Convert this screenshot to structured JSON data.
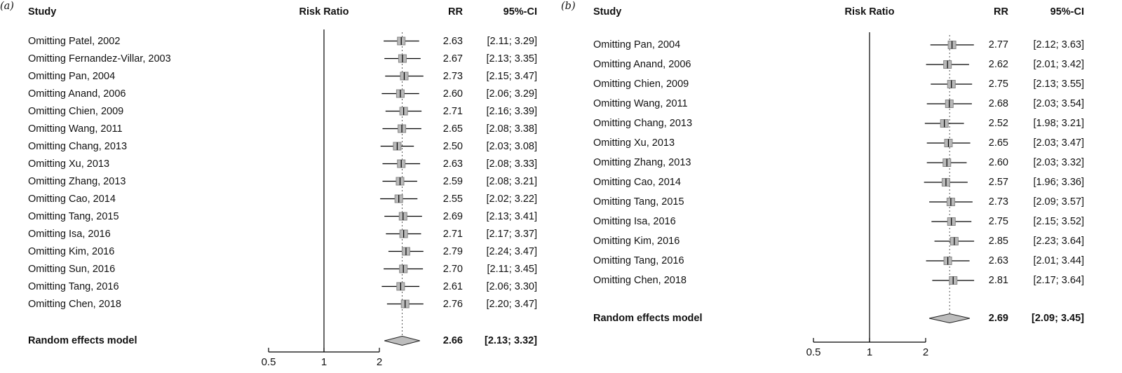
{
  "figure": {
    "background": "#ffffff"
  },
  "colors": {
    "text": "#111111",
    "line": "#000000",
    "square_fill": "#b9b9b9",
    "square_border": "#878787",
    "diamond_fill": "#bdbdbd",
    "diamond_border": "#222222",
    "pooled_line": "#555555"
  },
  "chart_data": [
    {
      "type": "forest",
      "panel_label": "(a)",
      "columns": {
        "study": "Study",
        "plot": "Risk Ratio",
        "rr": "RR",
        "ci": "95%-CI"
      },
      "studies": [
        {
          "label": "Omitting Patel, 2002",
          "rr": "2.63",
          "ci": "[2.11; 3.29]",
          "mean": 2.63,
          "lower": 2.11,
          "upper": 3.29
        },
        {
          "label": "Omitting Fernandez-Villar, 2003",
          "rr": "2.67",
          "ci": "[2.13; 3.35]",
          "mean": 2.67,
          "lower": 2.13,
          "upper": 3.35
        },
        {
          "label": "Omitting Pan, 2004",
          "rr": "2.73",
          "ci": "[2.15; 3.47]",
          "mean": 2.73,
          "lower": 2.15,
          "upper": 3.47
        },
        {
          "label": "Omitting Anand, 2006",
          "rr": "2.60",
          "ci": "[2.06; 3.29]",
          "mean": 2.6,
          "lower": 2.06,
          "upper": 3.29
        },
        {
          "label": "Omitting Chien, 2009",
          "rr": "2.71",
          "ci": "[2.16; 3.39]",
          "mean": 2.71,
          "lower": 2.16,
          "upper": 3.39
        },
        {
          "label": "Omitting Wang, 2011",
          "rr": "2.65",
          "ci": "[2.08; 3.38]",
          "mean": 2.65,
          "lower": 2.08,
          "upper": 3.38
        },
        {
          "label": "Omitting Chang, 2013",
          "rr": "2.50",
          "ci": "[2.03; 3.08]",
          "mean": 2.5,
          "lower": 2.03,
          "upper": 3.08
        },
        {
          "label": "Omitting Xu, 2013",
          "rr": "2.63",
          "ci": "[2.08; 3.33]",
          "mean": 2.63,
          "lower": 2.08,
          "upper": 3.33
        },
        {
          "label": "Omitting Zhang, 2013",
          "rr": "2.59",
          "ci": "[2.08; 3.21]",
          "mean": 2.59,
          "lower": 2.08,
          "upper": 3.21
        },
        {
          "label": "Omitting Cao, 2014",
          "rr": "2.55",
          "ci": "[2.02; 3.22]",
          "mean": 2.55,
          "lower": 2.02,
          "upper": 3.22
        },
        {
          "label": "Omitting Tang, 2015",
          "rr": "2.69",
          "ci": "[2.13; 3.41]",
          "mean": 2.69,
          "lower": 2.13,
          "upper": 3.41
        },
        {
          "label": "Omitting Isa, 2016",
          "rr": "2.71",
          "ci": "[2.17; 3.37]",
          "mean": 2.71,
          "lower": 2.17,
          "upper": 3.37
        },
        {
          "label": "Omitting Kim, 2016",
          "rr": "2.79",
          "ci": "[2.24; 3.47]",
          "mean": 2.79,
          "lower": 2.24,
          "upper": 3.47
        },
        {
          "label": "Omitting Sun, 2016",
          "rr": "2.70",
          "ci": "[2.11; 3.45]",
          "mean": 2.7,
          "lower": 2.11,
          "upper": 3.45
        },
        {
          "label": "Omitting Tang, 2016",
          "rr": "2.61",
          "ci": "[2.06; 3.30]",
          "mean": 2.61,
          "lower": 2.06,
          "upper": 3.3
        },
        {
          "label": "Omitting Chen, 2018",
          "rr": "2.76",
          "ci": "[2.20; 3.47]",
          "mean": 2.76,
          "lower": 2.2,
          "upper": 3.47
        }
      ],
      "summary": {
        "label": "Random effects model",
        "rr": "2.66",
        "ci": "[2.13; 3.32]",
        "mean": 2.66,
        "lower": 2.13,
        "upper": 3.32
      },
      "axis": {
        "scale": "log",
        "ticks": [
          0.5,
          1,
          2
        ],
        "tick_labels": [
          "0.5",
          "1",
          "2"
        ],
        "null_value": 1
      }
    },
    {
      "type": "forest",
      "panel_label": "(b)",
      "columns": {
        "study": "Study",
        "plot": "Risk Ratio",
        "rr": "RR",
        "ci": "95%-CI"
      },
      "studies": [
        {
          "label": "Omitting Pan, 2004",
          "rr": "2.77",
          "ci": "[2.12; 3.63]",
          "mean": 2.77,
          "lower": 2.12,
          "upper": 3.63
        },
        {
          "label": "Omitting Anand, 2006",
          "rr": "2.62",
          "ci": "[2.01; 3.42]",
          "mean": 2.62,
          "lower": 2.01,
          "upper": 3.42
        },
        {
          "label": "Omitting Chien, 2009",
          "rr": "2.75",
          "ci": "[2.13; 3.55]",
          "mean": 2.75,
          "lower": 2.13,
          "upper": 3.55
        },
        {
          "label": "Omitting Wang, 2011",
          "rr": "2.68",
          "ci": "[2.03; 3.54]",
          "mean": 2.68,
          "lower": 2.03,
          "upper": 3.54
        },
        {
          "label": "Omitting Chang, 2013",
          "rr": "2.52",
          "ci": "[1.98; 3.21]",
          "mean": 2.52,
          "lower": 1.98,
          "upper": 3.21
        },
        {
          "label": "Omitting Xu, 2013",
          "rr": "2.65",
          "ci": "[2.03; 3.47]",
          "mean": 2.65,
          "lower": 2.03,
          "upper": 3.47
        },
        {
          "label": "Omitting Zhang, 2013",
          "rr": "2.60",
          "ci": "[2.03; 3.32]",
          "mean": 2.6,
          "lower": 2.03,
          "upper": 3.32
        },
        {
          "label": "Omitting Cao, 2014",
          "rr": "2.57",
          "ci": "[1.96; 3.36]",
          "mean": 2.57,
          "lower": 1.96,
          "upper": 3.36
        },
        {
          "label": "Omitting Tang, 2015",
          "rr": "2.73",
          "ci": "[2.09; 3.57]",
          "mean": 2.73,
          "lower": 2.09,
          "upper": 3.57
        },
        {
          "label": "Omitting Isa, 2016",
          "rr": "2.75",
          "ci": "[2.15; 3.52]",
          "mean": 2.75,
          "lower": 2.15,
          "upper": 3.52
        },
        {
          "label": "Omitting Kim, 2016",
          "rr": "2.85",
          "ci": "[2.23; 3.64]",
          "mean": 2.85,
          "lower": 2.23,
          "upper": 3.64
        },
        {
          "label": "Omitting Tang, 2016",
          "rr": "2.63",
          "ci": "[2.01; 3.44]",
          "mean": 2.63,
          "lower": 2.01,
          "upper": 3.44
        },
        {
          "label": "Omitting Chen, 2018",
          "rr": "2.81",
          "ci": "[2.17; 3.64]",
          "mean": 2.81,
          "lower": 2.17,
          "upper": 3.64
        }
      ],
      "summary": {
        "label": "Random effects model",
        "rr": "2.69",
        "ci": "[2.09; 3.45]",
        "mean": 2.69,
        "lower": 2.09,
        "upper": 3.45
      },
      "axis": {
        "scale": "log",
        "ticks": [
          0.5,
          1,
          2
        ],
        "tick_labels": [
          "0.5",
          "1",
          "2"
        ],
        "null_value": 1
      }
    }
  ]
}
